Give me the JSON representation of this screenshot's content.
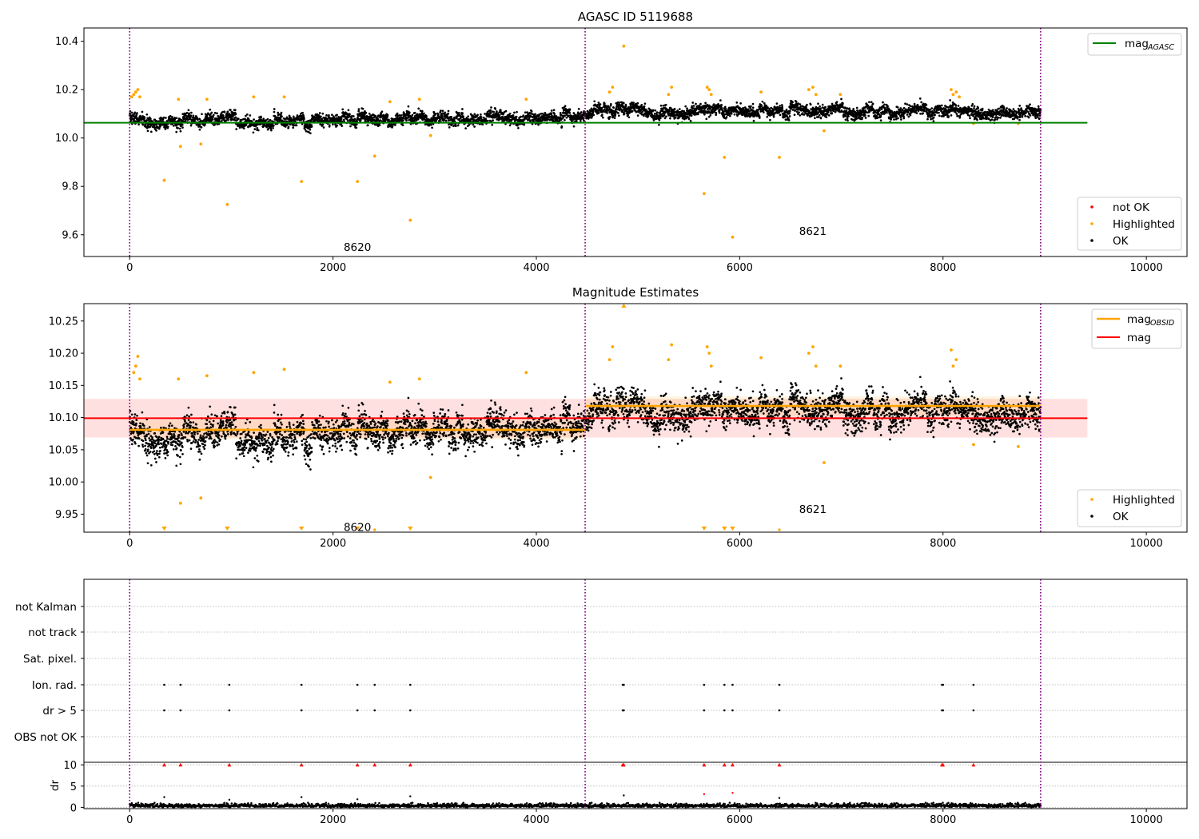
{
  "chart_data": [
    {
      "type": "scatter",
      "title": "AGASC ID 5119688",
      "xlim": [
        -450,
        10400
      ],
      "ylim": [
        9.51,
        10.455
      ],
      "xticks": [
        0,
        2000,
        4000,
        6000,
        8000,
        10000
      ],
      "yticks": [
        9.6,
        9.8,
        10.0,
        10.2,
        10.4
      ],
      "ytick_labels": [
        "9.6",
        "9.8",
        "10.0",
        "10.2",
        "10.4"
      ],
      "obs_boundaries": [
        0,
        4480,
        8960
      ],
      "obs_labels": [
        {
          "text": "8620",
          "x": 2240,
          "y": 9.55
        },
        {
          "text": "8621",
          "x": 6720,
          "y": 9.615
        }
      ],
      "reference_line": {
        "name": "mag",
        "subscript": "AGASC",
        "y": 10.063,
        "x_range": [
          -450,
          9420
        ],
        "color": "#008000"
      },
      "series": [
        {
          "name": "not OK",
          "color": "#ff0000",
          "points": []
        },
        {
          "name": "Highlighted",
          "color": "#ffa500",
          "points": [
            [
              20,
              10.17
            ],
            [
              40,
              10.18
            ],
            [
              60,
              10.19
            ],
            [
              80,
              10.2
            ],
            [
              100,
              10.17
            ],
            [
              340,
              9.825
            ],
            [
              480,
              10.16
            ],
            [
              500,
              9.965
            ],
            [
              700,
              9.975
            ],
            [
              760,
              10.16
            ],
            [
              960,
              9.725
            ],
            [
              1220,
              10.17
            ],
            [
              1520,
              10.17
            ],
            [
              1690,
              9.82
            ],
            [
              2240,
              9.82
            ],
            [
              2410,
              9.925
            ],
            [
              2560,
              10.15
            ],
            [
              2760,
              9.66
            ],
            [
              2850,
              10.16
            ],
            [
              2960,
              10.01
            ],
            [
              3900,
              10.16
            ],
            [
              4720,
              10.19
            ],
            [
              4750,
              10.21
            ],
            [
              4860,
              10.38
            ],
            [
              5300,
              10.18
            ],
            [
              5330,
              10.21
            ],
            [
              5650,
              9.77
            ],
            [
              5680,
              10.21
            ],
            [
              5700,
              10.2
            ],
            [
              5720,
              10.18
            ],
            [
              5850,
              9.92
            ],
            [
              5930,
              9.59
            ],
            [
              6210,
              10.19
            ],
            [
              6390,
              9.92
            ],
            [
              6680,
              10.2
            ],
            [
              6720,
              10.21
            ],
            [
              6750,
              10.18
            ],
            [
              6830,
              10.03
            ],
            [
              6990,
              10.18
            ],
            [
              8080,
              10.2
            ],
            [
              8100,
              10.18
            ],
            [
              8130,
              10.19
            ],
            [
              8160,
              10.17
            ],
            [
              8300,
              10.06
            ],
            [
              8740,
              10.06
            ]
          ]
        },
        {
          "name": "OK",
          "color": "#000000",
          "segments": [
            {
              "x": [
                0,
                4480
              ],
              "center": [
                10.068,
                10.085
              ],
              "noise": 0.022,
              "count": 2400
            },
            {
              "x": [
                4480,
                8960
              ],
              "center": [
                10.115,
                10.11
              ],
              "noise": 0.022,
              "count": 2400
            }
          ]
        }
      ],
      "legend": [
        "mag_AGASC",
        "not OK",
        "Highlighted",
        "OK"
      ]
    },
    {
      "type": "scatter",
      "title": "Magnitude Estimates",
      "xlim": [
        -450,
        10400
      ],
      "ylim": [
        9.922,
        10.277
      ],
      "xticks": [
        0,
        2000,
        4000,
        6000,
        8000,
        10000
      ],
      "yticks": [
        9.95,
        10.0,
        10.05,
        10.1,
        10.15,
        10.2,
        10.25
      ],
      "ytick_labels": [
        "9.95",
        "10.00",
        "10.05",
        "10.10",
        "10.15",
        "10.20",
        "10.25"
      ],
      "obs_boundaries": [
        0,
        4480,
        8960
      ],
      "obs_labels": [
        {
          "text": "8620",
          "x": 2240,
          "y": 9.93
        },
        {
          "text": "8621",
          "x": 6720,
          "y": 9.958
        }
      ],
      "mag_band": {
        "y": 10.099,
        "half_width": 0.03,
        "x_range": [
          -450,
          9420
        ],
        "color": "#ff0000"
      },
      "obsid_levels": [
        {
          "x": [
            0,
            4480
          ],
          "y": 10.081
        },
        {
          "x": [
            4480,
            8960
          ],
          "y": 10.118
        }
      ],
      "series": [
        {
          "name": "mag",
          "subscript": "OBSID",
          "color": "#ffa500"
        },
        {
          "name": "mag",
          "color": "#ff0000"
        },
        {
          "name": "Highlighted",
          "color": "#ffa500",
          "points": [
            [
              40,
              10.17
            ],
            [
              60,
              10.18
            ],
            [
              80,
              10.195
            ],
            [
              100,
              10.16
            ],
            [
              480,
              10.16
            ],
            [
              500,
              9.967
            ],
            [
              700,
              9.975
            ],
            [
              760,
              10.165
            ],
            [
              1220,
              10.17
            ],
            [
              1520,
              10.175
            ],
            [
              2560,
              10.155
            ],
            [
              2850,
              10.16
            ],
            [
              2960,
              10.007
            ],
            [
              3900,
              10.17
            ],
            [
              4720,
              10.19
            ],
            [
              4750,
              10.21
            ],
            [
              5300,
              10.19
            ],
            [
              5330,
              10.213
            ],
            [
              5680,
              10.21
            ],
            [
              5700,
              10.2
            ],
            [
              5720,
              10.18
            ],
            [
              6210,
              10.193
            ],
            [
              6680,
              10.2
            ],
            [
              6720,
              10.21
            ],
            [
              6750,
              10.18
            ],
            [
              6830,
              10.03
            ],
            [
              6990,
              10.18
            ],
            [
              8080,
              10.205
            ],
            [
              8100,
              10.18
            ],
            [
              8130,
              10.19
            ],
            [
              8300,
              10.058
            ],
            [
              8740,
              10.055
            ]
          ]
        },
        {
          "name": "OK",
          "color": "#000000"
        }
      ],
      "off_scale_markers": {
        "bottom_x": [
          340,
          960,
          1690,
          2240,
          2760,
          5650,
          5850,
          5930
        ],
        "bottom_dots_x": [
          2410,
          6390
        ],
        "top_x": [
          4860
        ]
      },
      "legend": [
        "mag_OBSID",
        "mag",
        "Highlighted",
        "OK"
      ]
    },
    {
      "type": "scatter",
      "title": "",
      "xlim": [
        -450,
        10400
      ],
      "xticks": [
        0,
        2000,
        4000,
        6000,
        8000,
        10000
      ],
      "obs_boundaries": [
        0,
        4480,
        8960
      ],
      "flag_rows": [
        "not Kalman",
        "not track",
        "Sat. pixel.",
        "Ion. rad.",
        "dr > 5",
        "OBS not OK"
      ],
      "flag_events_x": [
        340,
        500,
        980,
        1690,
        2240,
        2410,
        2760,
        4850,
        4860,
        5650,
        5850,
        5930,
        6390,
        7990,
        8000,
        8300
      ],
      "flagged_rows": [
        "Ion. rad.",
        "dr > 5"
      ],
      "dr": {
        "ylabel": "dr",
        "ylim": [
          -0.3,
          10.6
        ],
        "yticks": [
          0,
          5,
          10
        ],
        "clip_value": 10,
        "clipped_x": [
          340,
          500,
          980,
          1690,
          2240,
          2410,
          2760,
          4850,
          4860,
          5650,
          5850,
          5930,
          6390,
          7990,
          8000,
          8300
        ],
        "scattered_points": [
          [
            340,
            2.4
          ],
          [
            980,
            1.8
          ],
          [
            1690,
            2.4
          ],
          [
            2240,
            1.9
          ],
          [
            2760,
            2.6
          ],
          [
            4860,
            2.8
          ],
          [
            5650,
            3.1
          ],
          [
            5930,
            3.4
          ],
          [
            6390,
            2.2
          ]
        ],
        "baseline_max": 1.1
      }
    }
  ]
}
